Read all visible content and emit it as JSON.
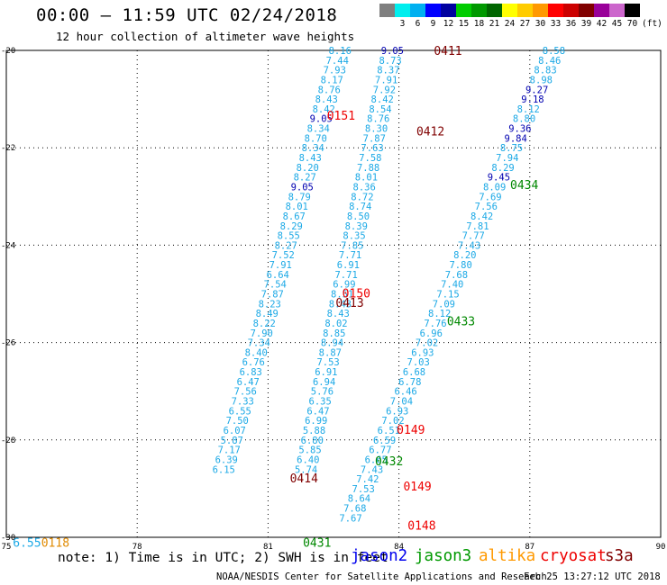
{
  "header": {
    "title": "00:00 – 11:59 UTC 02/24/2018",
    "subtitle": "12 hour collection of altimeter wave heights"
  },
  "colorbar": {
    "unit_label": "(ft)",
    "swatches": [
      {
        "label": "",
        "color": "#7f7f7f"
      },
      {
        "label": "3",
        "color": "#00eeee"
      },
      {
        "label": "6",
        "color": "#00b0f0"
      },
      {
        "label": "9",
        "color": "#0000ff"
      },
      {
        "label": "12",
        "color": "#0000a0"
      },
      {
        "label": "15",
        "color": "#00cc00"
      },
      {
        "label": "18",
        "color": "#009900"
      },
      {
        "label": "21",
        "color": "#006600"
      },
      {
        "label": "24",
        "color": "#ffff00"
      },
      {
        "label": "27",
        "color": "#ffcc00"
      },
      {
        "label": "30",
        "color": "#ff9900"
      },
      {
        "label": "33",
        "color": "#ff0000"
      },
      {
        "label": "36",
        "color": "#cc0000"
      },
      {
        "label": "39",
        "color": "#800000"
      },
      {
        "label": "42",
        "color": "#990099"
      },
      {
        "label": "45",
        "color": "#cc66cc"
      },
      {
        "label": "70",
        "color": "#000000"
      }
    ]
  },
  "map": {
    "lon_range": [
      75,
      90
    ],
    "lat_range": [
      -30,
      -20
    ],
    "lon_ticks": [
      "75",
      "78",
      "81",
      "84",
      "87",
      "90"
    ],
    "lat_ticks": [
      "-20",
      "-22",
      "-24",
      "-26",
      "-28",
      "-30"
    ],
    "lon_labels_at": [
      75,
      78,
      81,
      84,
      87,
      90
    ],
    "lat_labels_at": [
      -20,
      -22,
      -24,
      -26,
      -28,
      -30
    ],
    "grid": "dotted",
    "colors": {
      "cyan": "#1ca9e6",
      "blue": "#0000b0",
      "red": "#ee0000",
      "darkred": "#800000",
      "green": "#008800",
      "orange": "#e08a00"
    },
    "tracks": [
      {
        "name": "track-a",
        "lon0": 82.65,
        "lat0": -20,
        "dlon": -0.062,
        "dlat": -0.2,
        "labels": [
          {
            "v": "8.16",
            "c": "cyan"
          },
          {
            "v": "7.44",
            "c": "cyan"
          },
          {
            "v": "7.93",
            "c": "cyan"
          },
          {
            "v": "8.17",
            "c": "cyan"
          },
          {
            "v": "8.76",
            "c": "cyan"
          },
          {
            "v": "8.43",
            "c": "cyan"
          },
          {
            "v": "8.42",
            "c": "cyan"
          },
          {
            "v": "9.05",
            "c": "blue"
          },
          {
            "v": "8.34",
            "c": "cyan"
          },
          {
            "v": "8.70",
            "c": "cyan"
          },
          {
            "v": "8.34",
            "c": "cyan"
          },
          {
            "v": "8.43",
            "c": "cyan"
          },
          {
            "v": "8.20",
            "c": "cyan"
          },
          {
            "v": "8.27",
            "c": "cyan"
          },
          {
            "v": "9.05",
            "c": "blue"
          },
          {
            "v": "8.79",
            "c": "cyan"
          },
          {
            "v": "8.01",
            "c": "cyan"
          },
          {
            "v": "8.67",
            "c": "cyan"
          },
          {
            "v": "8.29",
            "c": "cyan"
          },
          {
            "v": "8.55",
            "c": "cyan"
          },
          {
            "v": "8.27",
            "c": "cyan"
          },
          {
            "v": "7.52",
            "c": "cyan"
          },
          {
            "v": "7.91",
            "c": "cyan"
          },
          {
            "v": "6.64",
            "c": "cyan"
          },
          {
            "v": "7.54",
            "c": "cyan"
          },
          {
            "v": "7.87",
            "c": "cyan"
          },
          {
            "v": "8.23",
            "c": "cyan"
          },
          {
            "v": "8.49",
            "c": "cyan"
          },
          {
            "v": "8.22",
            "c": "cyan"
          },
          {
            "v": "7.90",
            "c": "cyan"
          },
          {
            "v": "7.34",
            "c": "cyan"
          },
          {
            "v": "8.40",
            "c": "cyan"
          },
          {
            "v": "6.76",
            "c": "cyan"
          },
          {
            "v": "6.83",
            "c": "cyan"
          },
          {
            "v": "6.47",
            "c": "cyan"
          },
          {
            "v": "7.56",
            "c": "cyan"
          },
          {
            "v": "7.33",
            "c": "cyan"
          },
          {
            "v": "6.55",
            "c": "cyan"
          },
          {
            "v": "7.50",
            "c": "cyan"
          },
          {
            "v": "6.07",
            "c": "cyan"
          },
          {
            "v": "5.87",
            "c": "cyan"
          },
          {
            "v": "7.17",
            "c": "cyan"
          },
          {
            "v": "6.39",
            "c": "cyan"
          },
          {
            "v": "6.15",
            "c": "cyan"
          }
        ]
      },
      {
        "name": "track-b",
        "lon0": 83.85,
        "lat0": -20,
        "dlon": -0.046,
        "dlat": -0.2,
        "labels": [
          {
            "v": "9.05",
            "c": "blue"
          },
          {
            "v": "8.73",
            "c": "cyan"
          },
          {
            "v": "8.37",
            "c": "cyan"
          },
          {
            "v": "7.91",
            "c": "cyan"
          },
          {
            "v": "7.92",
            "c": "cyan"
          },
          {
            "v": "8.42",
            "c": "cyan"
          },
          {
            "v": "8.54",
            "c": "cyan"
          },
          {
            "v": "8.76",
            "c": "cyan"
          },
          {
            "v": "8.30",
            "c": "cyan"
          },
          {
            "v": "7.87",
            "c": "cyan"
          },
          {
            "v": "7.63",
            "c": "cyan"
          },
          {
            "v": "7.58",
            "c": "cyan"
          },
          {
            "v": "7.88",
            "c": "cyan"
          },
          {
            "v": "8.01",
            "c": "cyan"
          },
          {
            "v": "8.36",
            "c": "cyan"
          },
          {
            "v": "8.72",
            "c": "cyan"
          },
          {
            "v": "8.74",
            "c": "cyan"
          },
          {
            "v": "8.50",
            "c": "cyan"
          },
          {
            "v": "8.39",
            "c": "cyan"
          },
          {
            "v": "8.35",
            "c": "cyan"
          },
          {
            "v": "7.85",
            "c": "cyan"
          },
          {
            "v": "7.71",
            "c": "cyan"
          },
          {
            "v": "6.91",
            "c": "cyan"
          },
          {
            "v": "7.71",
            "c": "cyan"
          },
          {
            "v": "6.99",
            "c": "cyan"
          },
          {
            "v": "8.51",
            "c": "cyan"
          },
          {
            "v": "8.43",
            "c": "cyan"
          },
          {
            "v": "8.43",
            "c": "cyan"
          },
          {
            "v": "8.02",
            "c": "cyan"
          },
          {
            "v": "8.85",
            "c": "cyan"
          },
          {
            "v": "8.94",
            "c": "cyan"
          },
          {
            "v": "8.87",
            "c": "cyan"
          },
          {
            "v": "7.53",
            "c": "cyan"
          },
          {
            "v": "6.91",
            "c": "cyan"
          },
          {
            "v": "6.94",
            "c": "cyan"
          },
          {
            "v": "5.76",
            "c": "cyan"
          },
          {
            "v": "6.35",
            "c": "cyan"
          },
          {
            "v": "6.47",
            "c": "cyan"
          },
          {
            "v": "6.99",
            "c": "cyan"
          },
          {
            "v": "5.88",
            "c": "cyan"
          },
          {
            "v": "6.80",
            "c": "cyan"
          },
          {
            "v": "5.85",
            "c": "cyan"
          },
          {
            "v": "6.40",
            "c": "cyan"
          },
          {
            "v": "5.74",
            "c": "cyan"
          }
        ]
      },
      {
        "name": "track-c",
        "lon0": 87.55,
        "lat0": -20,
        "dlon": -0.097,
        "dlat": -0.2,
        "labels": [
          {
            "v": "8.58",
            "c": "cyan"
          },
          {
            "v": "8.46",
            "c": "cyan"
          },
          {
            "v": "8.83",
            "c": "cyan"
          },
          {
            "v": "8.98",
            "c": "cyan"
          },
          {
            "v": "9.27",
            "c": "blue"
          },
          {
            "v": "9.18",
            "c": "blue"
          },
          {
            "v": "8.12",
            "c": "cyan"
          },
          {
            "v": "8.80",
            "c": "cyan"
          },
          {
            "v": "9.36",
            "c": "blue"
          },
          {
            "v": "9.84",
            "c": "blue"
          },
          {
            "v": "8.75",
            "c": "cyan"
          },
          {
            "v": "7.94",
            "c": "cyan"
          },
          {
            "v": "8.29",
            "c": "cyan"
          },
          {
            "v": "9.45",
            "c": "blue"
          },
          {
            "v": "8.09",
            "c": "cyan"
          },
          {
            "v": "7.69",
            "c": "cyan"
          },
          {
            "v": "7.56",
            "c": "cyan"
          },
          {
            "v": "8.42",
            "c": "cyan"
          },
          {
            "v": "7.81",
            "c": "cyan"
          },
          {
            "v": "7.77",
            "c": "cyan"
          },
          {
            "v": "7.43",
            "c": "cyan"
          },
          {
            "v": "8.20",
            "c": "cyan"
          },
          {
            "v": "7.80",
            "c": "cyan"
          },
          {
            "v": "7.68",
            "c": "cyan"
          },
          {
            "v": "7.40",
            "c": "cyan"
          },
          {
            "v": "7.15",
            "c": "cyan"
          },
          {
            "v": "7.09",
            "c": "cyan"
          },
          {
            "v": "8.12",
            "c": "cyan"
          },
          {
            "v": "7.76",
            "c": "cyan"
          },
          {
            "v": "6.96",
            "c": "cyan"
          },
          {
            "v": "7.02",
            "c": "cyan"
          },
          {
            "v": "6.93",
            "c": "cyan"
          },
          {
            "v": "7.03",
            "c": "cyan"
          },
          {
            "v": "6.68",
            "c": "cyan"
          },
          {
            "v": "6.78",
            "c": "cyan"
          },
          {
            "v": "6.46",
            "c": "cyan"
          },
          {
            "v": "7.04",
            "c": "cyan"
          },
          {
            "v": "6.93",
            "c": "cyan"
          },
          {
            "v": "7.02",
            "c": "cyan"
          },
          {
            "v": "6.51",
            "c": "cyan"
          },
          {
            "v": "6.59",
            "c": "cyan"
          },
          {
            "v": "6.77",
            "c": "cyan"
          },
          {
            "v": "6.65",
            "c": "cyan"
          },
          {
            "v": "7.43",
            "c": "cyan"
          },
          {
            "v": "7.42",
            "c": "cyan"
          },
          {
            "v": "7.53",
            "c": "cyan"
          },
          {
            "v": "8.64",
            "c": "cyan"
          },
          {
            "v": "7.68",
            "c": "cyan"
          },
          {
            "v": "7.67",
            "c": "cyan"
          }
        ]
      }
    ],
    "time_labels": [
      {
        "t": "0411",
        "lon": 84.8,
        "lat": -20.0,
        "c": "darkred"
      },
      {
        "t": "0151",
        "lon": 82.35,
        "lat": -21.33,
        "c": "red"
      },
      {
        "t": "0412",
        "lon": 84.4,
        "lat": -21.65,
        "c": "darkred"
      },
      {
        "t": "0434",
        "lon": 86.55,
        "lat": -22.75,
        "c": "green"
      },
      {
        "t": "0150",
        "lon": 82.7,
        "lat": -24.98,
        "c": "red"
      },
      {
        "t": "0413",
        "lon": 82.55,
        "lat": -25.18,
        "c": "darkred"
      },
      {
        "t": "0433",
        "lon": 85.1,
        "lat": -25.55,
        "c": "green"
      },
      {
        "t": "0149",
        "lon": 83.95,
        "lat": -27.78,
        "c": "red"
      },
      {
        "t": "0432",
        "lon": 83.45,
        "lat": -28.43,
        "c": "green"
      },
      {
        "t": "0414",
        "lon": 81.5,
        "lat": -28.78,
        "c": "darkred"
      },
      {
        "t": "0149",
        "lon": 84.1,
        "lat": -28.95,
        "c": "red"
      },
      {
        "t": "0148",
        "lon": 84.2,
        "lat": -29.75,
        "c": "red"
      },
      {
        "t": "0431",
        "lon": 81.8,
        "lat": -30.1,
        "c": "green"
      },
      {
        "t": "6.55",
        "lon": 75.15,
        "lat": -30.1,
        "c": "cyan"
      },
      {
        "t": "0118",
        "lon": 75.8,
        "lat": -30.1,
        "c": "orange"
      }
    ]
  },
  "footer": {
    "note": "note: 1) Time is in UTC; 2) SWH is in feet",
    "satellites": [
      {
        "name": "jason2",
        "color": "#0000ee"
      },
      {
        "name": "jason3",
        "color": "#009900"
      },
      {
        "name": "altika",
        "color": "#ff9900"
      },
      {
        "name": "cryosat",
        "color": "#ee0000"
      },
      {
        "name": "s3a",
        "color": "#800000"
      }
    ],
    "credit": "NOAA/NESDIS Center for Satellite Applications and Research",
    "timestamp": "Feb 25 13:27:12 UTC 2018"
  }
}
